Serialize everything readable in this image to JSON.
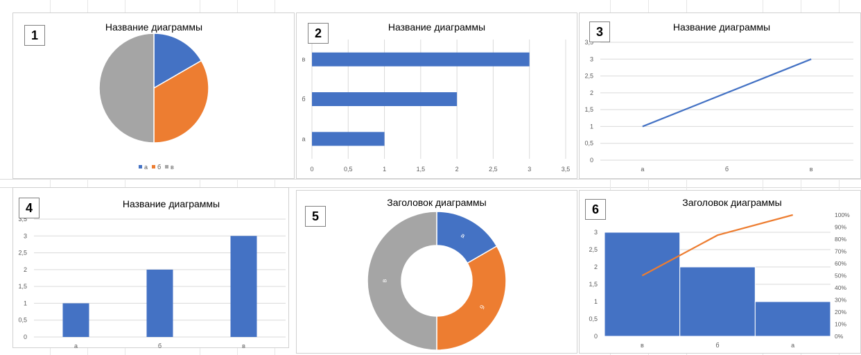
{
  "colors": {
    "blue": "#4472c4",
    "orange": "#ed7d31",
    "gray": "#a5a5a5",
    "grid": "#d9d9d9",
    "tick": "#595959",
    "title": "#595959"
  },
  "chart_data": [
    {
      "id": "1",
      "label": "1",
      "type": "pie",
      "title": "Название диаграммы",
      "categories": [
        "а",
        "б",
        "в"
      ],
      "values": [
        1,
        2,
        3
      ],
      "legend": "bottom"
    },
    {
      "id": "2",
      "label": "2",
      "type": "bar",
      "orientation": "horizontal",
      "title": "Название диаграммы",
      "categories": [
        "а",
        "б",
        "в"
      ],
      "values": [
        1,
        2,
        3
      ],
      "xlim": [
        0,
        3.5
      ],
      "ticks": [
        "0",
        "0,5",
        "1",
        "1,5",
        "2",
        "2,5",
        "3",
        "3,5"
      ],
      "grid": true
    },
    {
      "id": "3",
      "label": "3",
      "type": "line",
      "title": "Название диаграммы",
      "categories": [
        "а",
        "б",
        "в"
      ],
      "values": [
        1,
        2,
        3
      ],
      "ylim": [
        0,
        3.5
      ],
      "ticks": [
        "0",
        "0,5",
        "1",
        "1,5",
        "2",
        "2,5",
        "3",
        "3,5"
      ],
      "grid": true
    },
    {
      "id": "4",
      "label": "4",
      "type": "bar",
      "orientation": "vertical",
      "title": "Название диаграммы",
      "categories": [
        "а",
        "б",
        "в"
      ],
      "values": [
        1,
        2,
        3
      ],
      "ylim": [
        0,
        3.5
      ],
      "ticks": [
        "0",
        "0,5",
        "1",
        "1,5",
        "2",
        "2,5",
        "3",
        "3,5"
      ],
      "grid": true
    },
    {
      "id": "5",
      "label": "5",
      "type": "pie",
      "subtype": "doughnut",
      "title": "Заголовок диаграммы",
      "categories": [
        "а",
        "б",
        "в"
      ],
      "values": [
        1,
        2,
        3
      ],
      "data_labels": [
        "а",
        "б",
        "в"
      ]
    },
    {
      "id": "6",
      "label": "6",
      "type": "bar",
      "subtype": "pareto",
      "title": "Заголовок диаграммы",
      "categories": [
        "в",
        "б",
        "а"
      ],
      "values": [
        3,
        2,
        1
      ],
      "cumulative_percent": [
        50,
        83.3,
        100
      ],
      "ylim": [
        0,
        3.5
      ],
      "ticks": [
        "0",
        "0,5",
        "1",
        "1,5",
        "2",
        "2,5",
        "3"
      ],
      "y2lim": [
        0,
        100
      ],
      "y2ticks": [
        "0%",
        "10%",
        "20%",
        "30%",
        "40%",
        "50%",
        "60%",
        "70%",
        "80%",
        "90%",
        "100%"
      ],
      "grid": true
    }
  ]
}
